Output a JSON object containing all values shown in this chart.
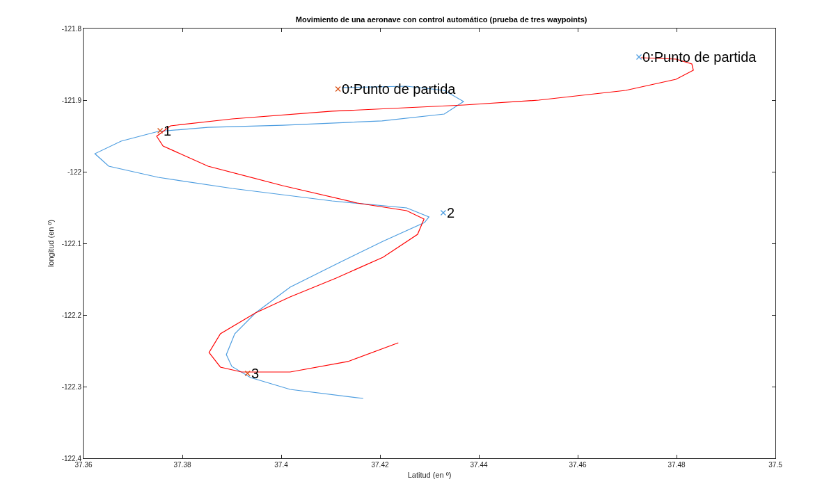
{
  "chart_data": {
    "type": "line",
    "title": "Movimiento de una aeronave con control automático (prueba de tres waypoints)",
    "xlabel": "Latitud (en º)",
    "ylabel": "longitud (en º)",
    "xlim": [
      37.36,
      37.5
    ],
    "ylim": [
      -122.4,
      -121.8
    ],
    "xticks": [
      37.36,
      37.38,
      37.4,
      37.42,
      37.44,
      37.46,
      37.48,
      37.5
    ],
    "yticks": [
      -122.4,
      -122.3,
      -122.2,
      -122.1,
      -122,
      -121.9,
      -121.8
    ],
    "series": [
      {
        "color": "#4d9de0",
        "x": [
          37.4123,
          37.4254,
          37.433,
          37.4369,
          37.433,
          37.4204,
          37.4003,
          37.3852,
          37.3751,
          37.3676,
          37.3623,
          37.3651,
          37.3751,
          37.3901,
          37.4103,
          37.4254,
          37.4299,
          37.429,
          37.4206,
          37.4111,
          37.4018,
          37.3948,
          37.3906,
          37.3889,
          37.39,
          37.3938,
          37.4018,
          37.4166
        ],
        "values": [
          -121.8825,
          -121.8806,
          -121.8864,
          -121.9019,
          -121.9194,
          -121.9291,
          -121.935,
          -121.9379,
          -121.9437,
          -121.9573,
          -121.9748,
          -121.9922,
          -122.0078,
          -122.0233,
          -122.0408,
          -122.0505,
          -122.0631,
          -122.0709,
          -122.0971,
          -122.1291,
          -122.1612,
          -122.1971,
          -122.2262,
          -122.2553,
          -122.2718,
          -122.2874,
          -122.3039,
          -122.3165
        ]
      },
      {
        "color": "#ff0000",
        "x": [
          37.4728,
          37.4799,
          37.4831,
          37.4834,
          37.4799,
          37.4697,
          37.4521,
          37.437,
          37.4103,
          37.3901,
          37.3776,
          37.3748,
          37.3761,
          37.3852,
          37.4003,
          37.4154,
          37.4254,
          37.4289,
          37.4276,
          37.4206,
          37.4111,
          37.4018,
          37.3948,
          37.3877,
          37.3854,
          37.3877,
          37.392,
          37.4018,
          37.4135,
          37.4237
        ],
        "values": [
          -121.8408,
          -121.8427,
          -121.8495,
          -121.8583,
          -121.8709,
          -121.8864,
          -121.9,
          -121.9068,
          -121.9155,
          -121.9262,
          -121.9359,
          -121.9505,
          -121.9641,
          -121.9922,
          -122.0194,
          -122.0437,
          -122.0544,
          -122.066,
          -122.0874,
          -122.1194,
          -122.1485,
          -122.1748,
          -122.1971,
          -122.2262,
          -122.2524,
          -122.2728,
          -122.2796,
          -122.2796,
          -122.265,
          -122.2388
        ]
      },
      {
        "type": "scatter",
        "marker": "cross",
        "color": "#4d9de0",
        "x": [
          37.4724,
          37.4328
        ],
        "values": [
          -121.8398,
          -122.0573
        ]
      },
      {
        "type": "scatter",
        "marker": "cross",
        "color": "#d95319",
        "x": [
          37.4115,
          37.3755,
          37.3932
        ],
        "values": [
          -121.8845,
          -121.9427,
          -122.2816
        ]
      }
    ],
    "annotations": [
      {
        "text": "0:Punto de partida",
        "x": 37.4724,
        "y": -121.8398
      },
      {
        "text": "0:Punto de partida",
        "x": 37.4115,
        "y": -121.8845
      },
      {
        "text": "1",
        "x": 37.3755,
        "y": -121.9427
      },
      {
        "text": "2",
        "x": 37.4328,
        "y": -122.0573
      },
      {
        "text": "3",
        "x": 37.3932,
        "y": -122.2816
      }
    ]
  }
}
